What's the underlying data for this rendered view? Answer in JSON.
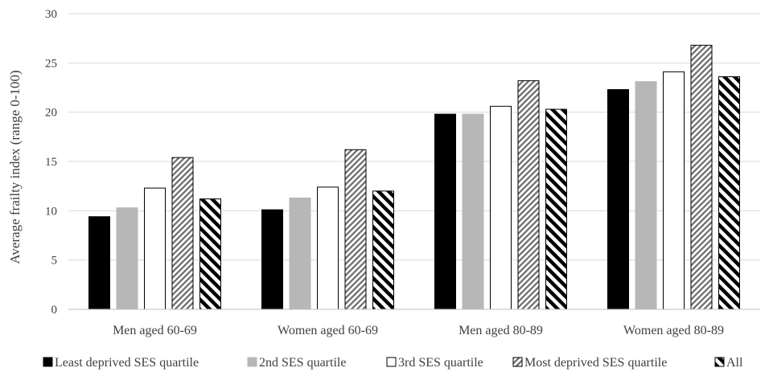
{
  "chart_data": {
    "type": "bar",
    "title": "",
    "xlabel": "",
    "ylabel": "Average frailty index (range 0-100)",
    "ylim": [
      0,
      30
    ],
    "yticks": [
      0,
      5,
      10,
      15,
      20,
      25,
      30
    ],
    "grid": "horizontal",
    "legend_position": "bottom",
    "categories": [
      "Men aged 60-69",
      "Women aged 60-69",
      "Men aged 80-89",
      "Women aged 80-89"
    ],
    "series": [
      {
        "name": "Least deprived SES quartile",
        "fill": "solid-black",
        "color": "#000000",
        "values": [
          9.4,
          10.1,
          19.8,
          22.3
        ]
      },
      {
        "name": "2nd SES quartile",
        "fill": "solid-gray",
        "color": "#b7b7b7",
        "values": [
          10.3,
          11.3,
          19.8,
          23.1
        ]
      },
      {
        "name": "3rd SES quartile",
        "fill": "white",
        "color": "#ffffff",
        "values": [
          12.3,
          12.4,
          20.6,
          24.1
        ]
      },
      {
        "name": "Most deprived SES quartile",
        "fill": "fine-diagonal-hatch",
        "color": "#7a7a7a",
        "values": [
          15.4,
          16.2,
          23.2,
          26.8
        ]
      },
      {
        "name": "All",
        "fill": "wide-diagonal-hatch",
        "color": "#000000",
        "values": [
          11.2,
          12.0,
          20.3,
          23.6
        ]
      }
    ]
  }
}
